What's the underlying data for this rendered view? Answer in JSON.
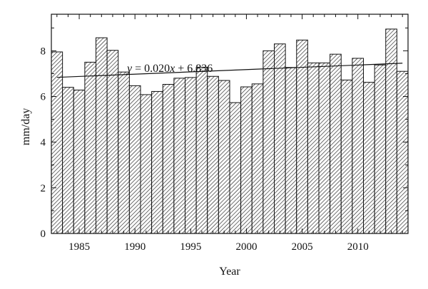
{
  "chart_data": {
    "type": "bar",
    "x": [
      1983,
      1984,
      1985,
      1986,
      1987,
      1988,
      1989,
      1990,
      1991,
      1992,
      1993,
      1994,
      1995,
      1996,
      1997,
      1998,
      1999,
      2000,
      2001,
      2002,
      2003,
      2004,
      2005,
      2006,
      2007,
      2008,
      2009,
      2010,
      2011,
      2012,
      2013,
      2014
    ],
    "values": [
      7.95,
      6.4,
      6.28,
      7.5,
      8.57,
      8.02,
      7.07,
      6.47,
      6.08,
      6.22,
      6.53,
      6.8,
      6.83,
      7.28,
      6.88,
      6.7,
      5.73,
      6.42,
      6.55,
      8.0,
      8.3,
      7.27,
      8.47,
      7.47,
      7.47,
      7.85,
      6.72,
      7.67,
      6.62,
      7.38,
      8.95,
      7.1
    ],
    "xlabel": "Year",
    "ylabel": "mm/day",
    "xlim": [
      1982.5,
      2014.5
    ],
    "ylim": [
      0,
      9.6
    ],
    "xticks_major": [
      1985,
      1990,
      1995,
      2000,
      2005,
      2010
    ],
    "xticks_minor_step": 1,
    "yticks": [
      0,
      2,
      4,
      6,
      8
    ],
    "ytick_labels": [
      "0",
      "2",
      "4",
      "6",
      "8"
    ],
    "xtick_labels": [
      "1985",
      "1990",
      "1995",
      "2000",
      "2005",
      "2010"
    ],
    "trendline": {
      "equation_text": "y = 0.020x + 6.836",
      "slope": 0.02,
      "intercept": 6.836,
      "x_start": 1983,
      "x_end": 2014
    },
    "bar_fill": "hatched",
    "grid": false
  }
}
